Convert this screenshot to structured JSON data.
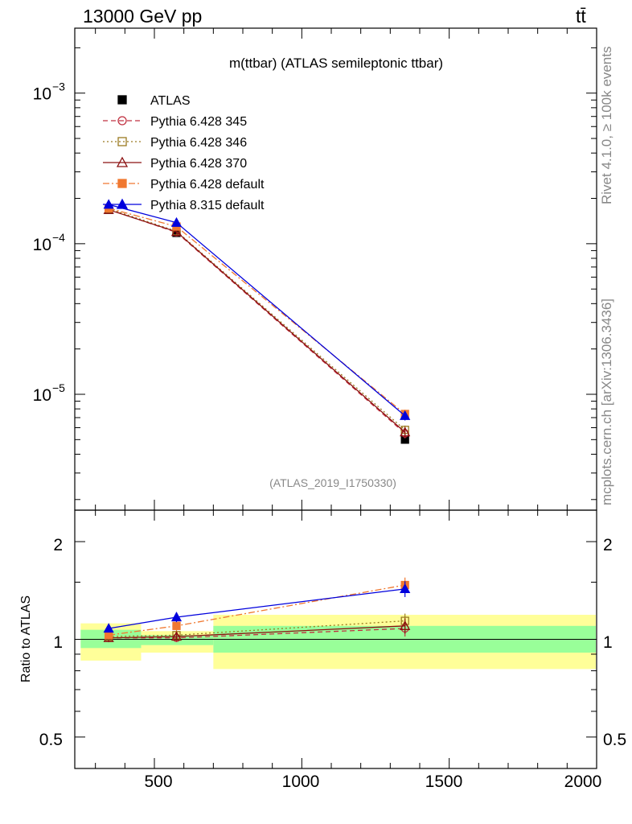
{
  "header": {
    "left": "13000 GeV pp",
    "right": "tt̄"
  },
  "side_labels": {
    "rivet": "Rivet 4.1.0, ≥ 100k events",
    "mcplots": "mcplots.cern.ch [arXiv:1306.3436]"
  },
  "chart_data": [
    {
      "type": "line",
      "title": "m(ttbar) (ATLAS semileptonic ttbar)",
      "watermark": "(ATLAS_2019_I1750330)",
      "yscale": "log",
      "ylim": [
        1.7e-06,
        0.0027
      ],
      "xlim": [
        230,
        2000
      ],
      "ytick_labels": [
        {
          "value": 0.001,
          "base": "10",
          "exp": "−3"
        },
        {
          "value": 0.0001,
          "base": "10",
          "exp": "−4"
        },
        {
          "value": 1e-05,
          "base": "10",
          "exp": "−5"
        }
      ],
      "legend_position": "top-left",
      "series": [
        {
          "name": "ATLAS",
          "color": "#000000",
          "marker": "filled-square",
          "line": "none",
          "x": [
            345,
            575,
            1350
          ],
          "y": [
            0.000168,
            0.000118,
            5e-06
          ],
          "yerr": [
            6e-06,
            4e-06,
            3e-07
          ]
        },
        {
          "name": "Pythia 6.428 345",
          "color": "#c03040",
          "marker": "open-circle",
          "line": "dashed",
          "x": [
            345,
            575,
            1350
          ],
          "y": [
            0.000169,
            0.000119,
            5.5e-06
          ],
          "yerr": [
            4e-06,
            4e-06,
            4e-07
          ]
        },
        {
          "name": "Pythia 6.428 346",
          "color": "#9a7a20",
          "marker": "open-square",
          "line": "dotted",
          "x": [
            345,
            575,
            1350
          ],
          "y": [
            0.000171,
            0.000121,
            5.8e-06
          ],
          "yerr": [
            4e-06,
            4e-06,
            4e-07
          ]
        },
        {
          "name": "Pythia 6.428 370",
          "color": "#8b1010",
          "marker": "open-triangle",
          "line": "solid",
          "x": [
            345,
            575,
            1350
          ],
          "y": [
            0.000168,
            0.00012,
            5.6e-06
          ],
          "yerr": [
            4e-06,
            4e-06,
            4e-07
          ]
        },
        {
          "name": "Pythia 6.428 default",
          "color": "#f07830",
          "marker": "filled-square",
          "line": "dashdot",
          "x": [
            345,
            575,
            1350
          ],
          "y": [
            0.000172,
            0.00013,
            7.4e-06
          ],
          "yerr": [
            4e-06,
            4e-06,
            5e-07
          ]
        },
        {
          "name": "Pythia 8.315 default",
          "color": "#0000dd",
          "marker": "filled-triangle",
          "line": "solid",
          "x": [
            345,
            575,
            1350
          ],
          "y": [
            0.000182,
            0.000138,
            7.2e-06
          ],
          "yerr": [
            4e-06,
            4e-06,
            5e-07
          ]
        }
      ]
    },
    {
      "type": "line",
      "ylabel": "Ratio to ATLAS",
      "yscale": "log",
      "ylim": [
        0.4,
        2.5
      ],
      "xlim": [
        230,
        2000
      ],
      "ytick_labels": [
        "0.5",
        "1",
        "2"
      ],
      "xtick_labels": [
        "500",
        "1000",
        "1500",
        "2000"
      ],
      "uncertainty_bands": [
        {
          "x0": 250,
          "x1": 455,
          "inner": [
            0.94,
            1.07
          ],
          "outer": [
            0.86,
            1.12
          ]
        },
        {
          "x0": 455,
          "x1": 700,
          "inner": [
            0.96,
            1.03
          ],
          "outer": [
            0.91,
            1.06
          ]
        },
        {
          "x0": 700,
          "x1": 2000,
          "inner": [
            0.91,
            1.1
          ],
          "outer": [
            0.81,
            1.19
          ]
        }
      ],
      "band_colors": {
        "inner": "#99ff99",
        "outer": "#ffff99"
      },
      "series": [
        {
          "name": "Pythia 6.428 345",
          "x": [
            345,
            575,
            1350
          ],
          "y": [
            1.01,
            1.01,
            1.08
          ],
          "yerr": [
            0.03,
            0.03,
            0.06
          ]
        },
        {
          "name": "Pythia 6.428 346",
          "x": [
            345,
            575,
            1350
          ],
          "y": [
            1.02,
            1.03,
            1.14
          ],
          "yerr": [
            0.03,
            0.03,
            0.06
          ]
        },
        {
          "name": "Pythia 6.428 370",
          "x": [
            345,
            575,
            1350
          ],
          "y": [
            1.01,
            1.02,
            1.1
          ],
          "yerr": [
            0.03,
            0.03,
            0.06
          ]
        },
        {
          "name": "Pythia 6.428 default",
          "x": [
            345,
            575,
            1350
          ],
          "y": [
            1.03,
            1.1,
            1.47
          ],
          "yerr": [
            0.03,
            0.04,
            0.08
          ]
        },
        {
          "name": "Pythia 8.315 default",
          "x": [
            345,
            575,
            1350
          ],
          "y": [
            1.08,
            1.17,
            1.43
          ],
          "yerr": [
            0.03,
            0.04,
            0.08
          ]
        }
      ]
    }
  ]
}
